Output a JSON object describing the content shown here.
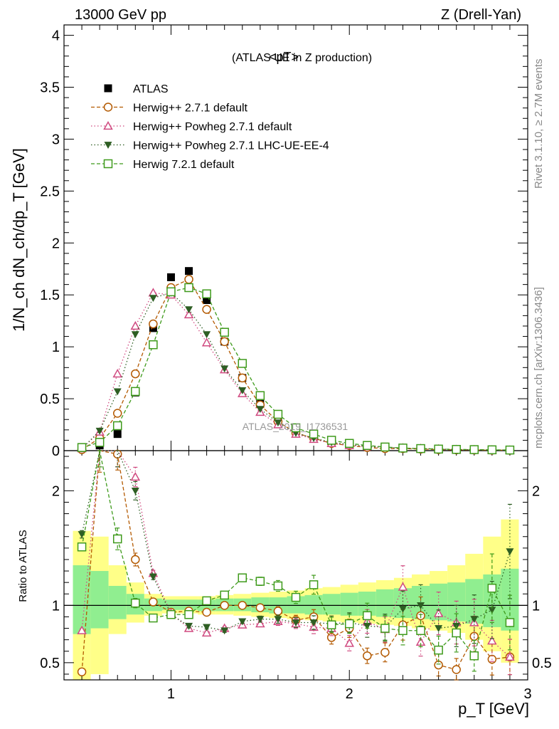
{
  "header": {
    "left_title": "13000 GeV pp",
    "right_title": "Z (Drell-Yan)",
    "side_rivet": "Rivet 3.1.10, ≥ 2.7M events",
    "side_mcplots": "mcplots.cern.ch [arXiv:1306.3436]",
    "watermark": "ATLAS_2019_I1736531"
  },
  "chart_data": {
    "type": "scatter",
    "title": "<pT>",
    "subtitle": "(ATLAS UE in Z production)",
    "xlabel": "p_T [GeV]",
    "ylabel": "1/N_ch dN_ch/dp_T [GeV]",
    "ratio_ylabel": "Ratio to ATLAS",
    "xlim": [
      0.4,
      3.0
    ],
    "ylim": [
      0,
      4.1
    ],
    "ratio_ylim": [
      0.35,
      2.35
    ],
    "x_ticks": [
      "1",
      "2",
      "3"
    ],
    "y_ticks": [
      "0",
      "0.5",
      "1",
      "1.5",
      "2",
      "2.5",
      "3",
      "3.5",
      "4"
    ],
    "ratio_y_ticks": [
      "0.5",
      "1",
      "2"
    ],
    "x": [
      0.5,
      0.6,
      0.7,
      0.8,
      0.9,
      1.0,
      1.1,
      1.2,
      1.3,
      1.4,
      1.5,
      1.6,
      1.7,
      1.8,
      1.9,
      2.0,
      2.1,
      2.2,
      2.3,
      2.4,
      2.5,
      2.6,
      2.7,
      2.8,
      2.9
    ],
    "series": [
      {
        "name": "ATLAS",
        "color": "#000000",
        "marker": "square-filled",
        "values": [
          0.03,
          0.05,
          0.16,
          0.56,
          1.18,
          1.67,
          1.73,
          1.45,
          1.05,
          0.7,
          0.45,
          0.3,
          0.2,
          0.14,
          0.1,
          0.07,
          0.05,
          0.035,
          0.025,
          0.02,
          0.015,
          0.012,
          0.01,
          0.008,
          0.006
        ]
      },
      {
        "name": "Herwig++ 2.7.1 default",
        "color": "#b35900",
        "marker": "circle-open",
        "dash": "5,3",
        "values": [
          0.01,
          0.12,
          0.36,
          0.74,
          1.22,
          1.57,
          1.65,
          1.36,
          1.05,
          0.7,
          0.44,
          0.28,
          0.17,
          0.12,
          0.07,
          0.05,
          0.03,
          0.02,
          0.02,
          0.015,
          0.01,
          0.008,
          0.006,
          0.005,
          0.004
        ]
      },
      {
        "name": "Herwig++ Powheg 2.7.1 default",
        "color": "#d04a80",
        "marker": "triangle-open",
        "dash": "1.5,3",
        "values": [
          0.02,
          0.18,
          0.74,
          1.2,
          1.52,
          1.5,
          1.31,
          1.04,
          0.78,
          0.55,
          0.37,
          0.25,
          0.16,
          0.11,
          0.07,
          0.05,
          0.04,
          0.03,
          0.025,
          0.02,
          0.015,
          0.01,
          0.008,
          0.006,
          0.004
        ]
      },
      {
        "name": "Herwig++ Powheg 2.7.1 LHC-UE-EE-4",
        "color": "#2e5e23",
        "marker": "triangle-down-filled",
        "dash": "1.5,3",
        "values": [
          0.02,
          0.19,
          0.57,
          1.12,
          1.47,
          1.52,
          1.36,
          1.12,
          0.79,
          0.58,
          0.4,
          0.27,
          0.17,
          0.12,
          0.08,
          0.06,
          0.04,
          0.03,
          0.024,
          0.02,
          0.015,
          0.011,
          0.008,
          0.006,
          0.005
        ]
      },
      {
        "name": "Herwig 7.2.1 default",
        "color": "#3e9a1b",
        "marker": "square-open",
        "dash": "5,3",
        "values": [
          0.03,
          0.08,
          0.24,
          0.57,
          1.02,
          1.53,
          1.57,
          1.51,
          1.14,
          0.84,
          0.53,
          0.35,
          0.22,
          0.16,
          0.1,
          0.07,
          0.05,
          0.035,
          0.025,
          0.02,
          0.015,
          0.012,
          0.01,
          0.008,
          0.006
        ]
      }
    ],
    "ratios": [
      [
        0.42,
        2.35,
        2.32,
        1.4,
        1.03,
        0.94,
        0.95,
        0.94,
        1.0,
        1.0,
        0.98,
        0.95,
        0.87,
        0.9,
        0.72,
        0.8,
        0.56,
        0.59,
        0.83,
        0.91,
        0.48,
        0.44,
        0.73,
        0.53,
        0.55
      ],
      [
        0.78,
        2.4,
        2.35,
        2.12,
        1.28,
        0.93,
        0.8,
        0.76,
        0.8,
        0.83,
        0.84,
        0.86,
        0.84,
        0.81,
        0.8,
        0.67,
        0.86,
        0.79,
        1.16,
        0.68,
        0.93,
        0.85,
        0.85,
        0.69,
        0.55
      ],
      [
        1.62,
        2.4,
        2.35,
        2.0,
        1.25,
        0.92,
        0.82,
        0.81,
        0.78,
        0.86,
        0.88,
        0.88,
        0.85,
        0.85,
        0.84,
        0.85,
        0.82,
        0.81,
        0.97,
        1.0,
        0.8,
        0.82,
        0.88,
        0.96,
        1.47
      ],
      [
        1.51,
        2.4,
        1.58,
        1.02,
        0.89,
        0.92,
        0.92,
        1.04,
        1.09,
        1.24,
        1.21,
        1.17,
        1.07,
        1.18,
        0.83,
        0.84,
        0.91,
        0.8,
        0.78,
        0.78,
        0.61,
        0.76,
        0.56,
        1.15,
        0.85
      ]
    ],
    "ratio_errors": [
      0.02,
      0.08,
      0.06,
      0.04,
      0.02,
      0.02,
      0.02,
      0.02,
      0.02,
      0.02,
      0.03,
      0.04,
      0.05,
      0.07,
      0.08,
      0.1,
      0.12,
      0.14,
      0.16,
      0.18,
      0.2,
      0.22,
      0.24,
      0.26,
      0.28
    ],
    "band_inner": [
      [
        0.75,
        1.35
      ],
      [
        0.8,
        1.3
      ],
      [
        0.88,
        1.17
      ],
      [
        0.92,
        1.1
      ],
      [
        0.95,
        1.06
      ],
      [
        0.96,
        1.05
      ],
      [
        0.96,
        1.05
      ],
      [
        0.95,
        1.05
      ],
      [
        0.95,
        1.06
      ],
      [
        0.95,
        1.06
      ],
      [
        0.94,
        1.07
      ],
      [
        0.93,
        1.07
      ],
      [
        0.93,
        1.08
      ],
      [
        0.92,
        1.09
      ],
      [
        0.92,
        1.1
      ],
      [
        0.91,
        1.11
      ],
      [
        0.91,
        1.12
      ],
      [
        0.9,
        1.14
      ],
      [
        0.89,
        1.15
      ],
      [
        0.88,
        1.17
      ],
      [
        0.87,
        1.19
      ],
      [
        0.86,
        1.2
      ],
      [
        0.84,
        1.23
      ],
      [
        0.81,
        1.27
      ],
      [
        0.78,
        1.32
      ]
    ],
    "band_outer": [
      [
        0.35,
        1.65
      ],
      [
        0.4,
        1.6
      ],
      [
        0.75,
        1.35
      ],
      [
        0.85,
        1.2
      ],
      [
        0.91,
        1.1
      ],
      [
        0.93,
        1.08
      ],
      [
        0.93,
        1.08
      ],
      [
        0.92,
        1.08
      ],
      [
        0.92,
        1.09
      ],
      [
        0.91,
        1.1
      ],
      [
        0.9,
        1.11
      ],
      [
        0.89,
        1.12
      ],
      [
        0.88,
        1.13
      ],
      [
        0.87,
        1.15
      ],
      [
        0.86,
        1.16
      ],
      [
        0.85,
        1.18
      ],
      [
        0.84,
        1.2
      ],
      [
        0.83,
        1.22
      ],
      [
        0.82,
        1.24
      ],
      [
        0.8,
        1.27
      ],
      [
        0.78,
        1.3
      ],
      [
        0.76,
        1.35
      ],
      [
        0.7,
        1.45
      ],
      [
        0.6,
        1.6
      ],
      [
        0.5,
        1.75
      ]
    ]
  }
}
